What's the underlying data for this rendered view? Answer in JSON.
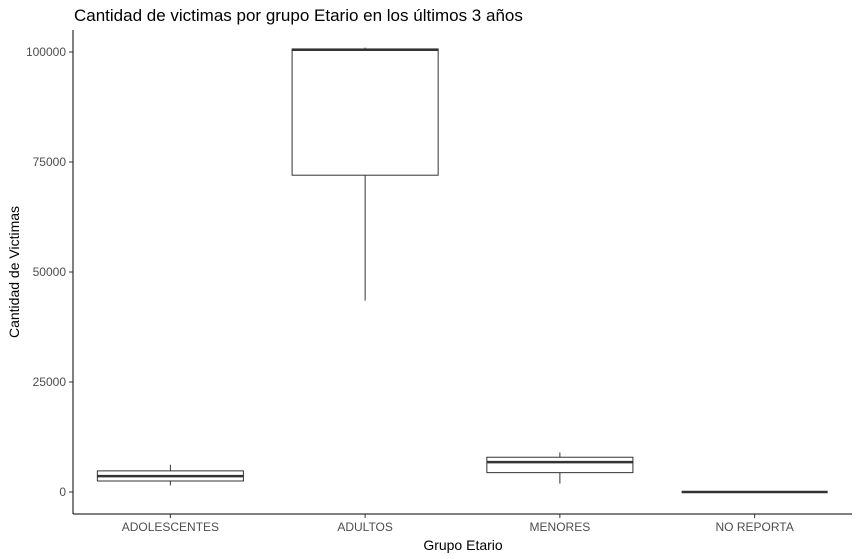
{
  "chart_data": {
    "type": "boxplot",
    "title": "Cantidad de victimas por grupo Etario en los últimos 3 años",
    "xlabel": "Grupo Etario",
    "ylabel": "Cantidad de Victimas",
    "ylim": [
      -5000,
      105000
    ],
    "yticks": [
      0,
      25000,
      50000,
      75000,
      100000
    ],
    "ytick_labels": [
      "0",
      "25000",
      "50000",
      "75000",
      "100000"
    ],
    "grid": false,
    "categories": [
      "ADOLESCENTES",
      "ADULTOS",
      "MENORES",
      "NO REPORTA"
    ],
    "boxes": [
      {
        "category": "ADOLESCENTES",
        "min": 1500,
        "q1": 2500,
        "median": 3600,
        "q3": 4800,
        "max": 6200
      },
      {
        "category": "ADULTOS",
        "min": 43500,
        "q1": 72000,
        "median": 100500,
        "q3": 100700,
        "max": 101000
      },
      {
        "category": "MENORES",
        "min": 1900,
        "q1": 4400,
        "median": 6800,
        "q3": 7900,
        "max": 9000
      },
      {
        "category": "NO REPORTA",
        "min": 0,
        "q1": 0,
        "median": 0,
        "q3": 0,
        "max": 0
      }
    ]
  }
}
